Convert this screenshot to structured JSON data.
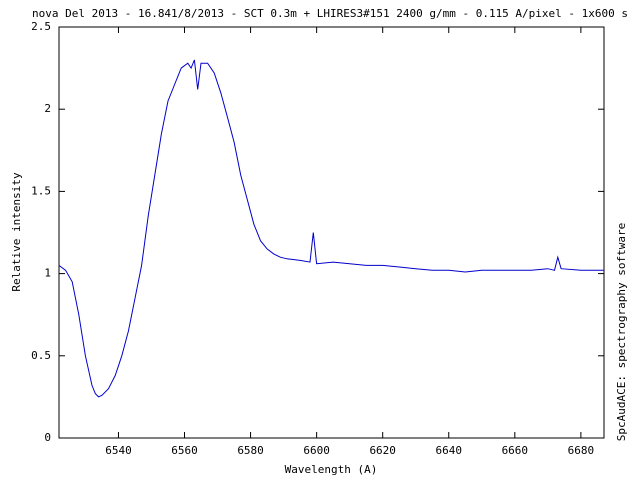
{
  "chart_data": {
    "type": "line",
    "title": "nova Del 2013 - 16.841/8/2013 - SCT 0.3m + LHIRES3#151 2400 g/mm - 0.115 A/pixel - 1x600 s",
    "x_label": "Wavelength (A)",
    "y_label": "Relative intensity",
    "side_label": "SpcAudACE: spectrography software",
    "xlim": [
      6522,
      6687
    ],
    "ylim": [
      0,
      2.5
    ],
    "xticks": [
      6540,
      6560,
      6580,
      6600,
      6620,
      6640,
      6660,
      6680
    ],
    "yticks": [
      0,
      0.5,
      1,
      1.5,
      2,
      2.5
    ],
    "grid": false,
    "series": [
      {
        "color": "#0000cc",
        "x": [
          6522,
          6524,
          6526,
          6528,
          6530,
          6532,
          6533,
          6534,
          6535,
          6537,
          6539,
          6541,
          6543,
          6545,
          6547,
          6549,
          6551,
          6553,
          6555,
          6557,
          6559,
          6561,
          6562,
          6563,
          6564,
          6565,
          6567,
          6569,
          6571,
          6573,
          6575,
          6577,
          6579,
          6581,
          6583,
          6585,
          6587,
          6589,
          6591,
          6595,
          6598,
          6599,
          6600,
          6605,
          6610,
          6615,
          6620,
          6625,
          6630,
          6635,
          6640,
          6645,
          6650,
          6655,
          6660,
          6665,
          6670,
          6672,
          6673,
          6674,
          6680,
          6687
        ],
        "values": [
          1.05,
          1.02,
          0.95,
          0.75,
          0.5,
          0.32,
          0.27,
          0.25,
          0.26,
          0.3,
          0.38,
          0.5,
          0.65,
          0.85,
          1.05,
          1.35,
          1.6,
          1.85,
          2.05,
          2.15,
          2.25,
          2.28,
          2.25,
          2.3,
          2.12,
          2.28,
          2.28,
          2.22,
          2.1,
          1.95,
          1.8,
          1.6,
          1.45,
          1.3,
          1.2,
          1.15,
          1.12,
          1.1,
          1.09,
          1.08,
          1.07,
          1.25,
          1.06,
          1.07,
          1.06,
          1.05,
          1.05,
          1.04,
          1.03,
          1.02,
          1.02,
          1.01,
          1.02,
          1.02,
          1.02,
          1.02,
          1.03,
          1.02,
          1.1,
          1.03,
          1.02,
          1.02
        ]
      }
    ]
  }
}
